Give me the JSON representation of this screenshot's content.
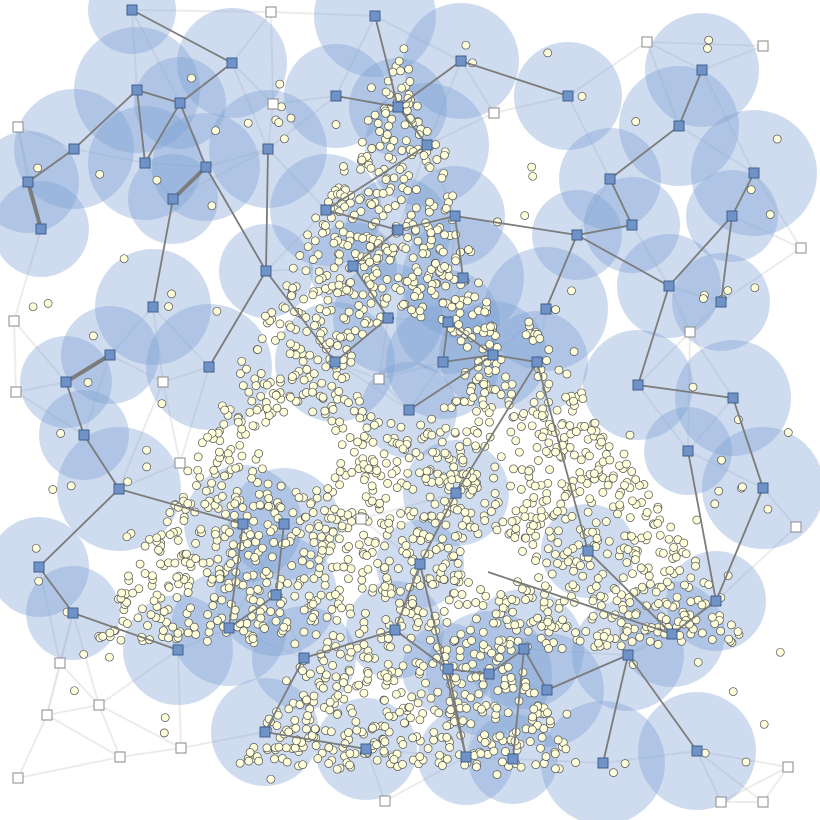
{
  "diagram": {
    "type": "sensor-network-coverage",
    "colors": {
      "background": "#ffffff",
      "coverage_fill": "#7b9fd2",
      "coverage_opacity": 0.36,
      "active_node_fill": "#7093c7",
      "active_node_stroke": "#3f5f8c",
      "inactive_node_fill": "#ffffff",
      "inactive_node_stroke": "#8a8a8a",
      "point_fill": "#ffffdc",
      "point_stroke": "#555555",
      "edge_color": "#7c7c7c",
      "faint_edge_color": "#dddddd"
    },
    "legend": "none",
    "grid": false
  },
  "network": {
    "active_nodes": [
      [
        132,
        10
      ],
      [
        375,
        16
      ],
      [
        461,
        61
      ],
      [
        232,
        63
      ],
      [
        336,
        96
      ],
      [
        398,
        107
      ],
      [
        180,
        103
      ],
      [
        137,
        90
      ],
      [
        74,
        149
      ],
      [
        145,
        163
      ],
      [
        206,
        167
      ],
      [
        28,
        182
      ],
      [
        41,
        229
      ],
      [
        173,
        199
      ],
      [
        427,
        145
      ],
      [
        268,
        149
      ],
      [
        326,
        210
      ],
      [
        398,
        230
      ],
      [
        455,
        216
      ],
      [
        266,
        271
      ],
      [
        353,
        266
      ],
      [
        463,
        278
      ],
      [
        153,
        307
      ],
      [
        388,
        318
      ],
      [
        448,
        322
      ],
      [
        110,
        355
      ],
      [
        66,
        382
      ],
      [
        209,
        367
      ],
      [
        335,
        362
      ],
      [
        443,
        362
      ],
      [
        493,
        355
      ],
      [
        537,
        362
      ],
      [
        409,
        410
      ],
      [
        84,
        435
      ],
      [
        119,
        489
      ],
      [
        243,
        524
      ],
      [
        284,
        524
      ],
      [
        456,
        493
      ],
      [
        39,
        567
      ],
      [
        73,
        613
      ],
      [
        420,
        564
      ],
      [
        276,
        595
      ],
      [
        229,
        628
      ],
      [
        178,
        650
      ],
      [
        304,
        658
      ],
      [
        395,
        630
      ],
      [
        448,
        669
      ],
      [
        489,
        674
      ],
      [
        524,
        649
      ],
      [
        547,
        690
      ],
      [
        265,
        732
      ],
      [
        366,
        749
      ],
      [
        466,
        757
      ],
      [
        513,
        759
      ],
      [
        603,
        763
      ],
      [
        697,
        751
      ],
      [
        628,
        655
      ],
      [
        672,
        634
      ],
      [
        716,
        601
      ],
      [
        588,
        551
      ],
      [
        688,
        451
      ],
      [
        763,
        488
      ],
      [
        733,
        398
      ],
      [
        638,
        385
      ],
      [
        669,
        286
      ],
      [
        721,
        302
      ],
      [
        732,
        216
      ],
      [
        754,
        173
      ],
      [
        679,
        126
      ],
      [
        702,
        70
      ],
      [
        568,
        96
      ],
      [
        610,
        179
      ],
      [
        632,
        225
      ],
      [
        577,
        235
      ],
      [
        546,
        309
      ]
    ],
    "inactive_nodes": [
      [
        271,
        12
      ],
      [
        647,
        42
      ],
      [
        763,
        46
      ],
      [
        18,
        127
      ],
      [
        273,
        104
      ],
      [
        494,
        113
      ],
      [
        801,
        248
      ],
      [
        14,
        321
      ],
      [
        690,
        332
      ],
      [
        163,
        382
      ],
      [
        16,
        392
      ],
      [
        379,
        379
      ],
      [
        180,
        463
      ],
      [
        361,
        519
      ],
      [
        796,
        527
      ],
      [
        60,
        663
      ],
      [
        47,
        715
      ],
      [
        99,
        705
      ],
      [
        181,
        748
      ],
      [
        120,
        757
      ],
      [
        18,
        778
      ],
      [
        385,
        801
      ],
      [
        721,
        802
      ],
      [
        763,
        802
      ],
      [
        788,
        767
      ]
    ],
    "edges": [
      [
        132,
        10,
        232,
        63
      ],
      [
        232,
        63,
        180,
        103
      ],
      [
        180,
        103,
        137,
        90
      ],
      [
        137,
        90,
        74,
        149
      ],
      [
        74,
        149,
        28,
        182
      ],
      [
        28,
        182,
        41,
        229
      ],
      [
        180,
        103,
        145,
        163
      ],
      [
        137,
        90,
        145,
        163
      ],
      [
        180,
        103,
        206,
        167
      ],
      [
        206,
        167,
        173,
        199
      ],
      [
        173,
        199,
        153,
        307
      ],
      [
        206,
        167,
        266,
        271
      ],
      [
        268,
        149,
        266,
        271
      ],
      [
        266,
        271,
        209,
        367
      ],
      [
        266,
        271,
        335,
        362
      ],
      [
        335,
        362,
        388,
        318
      ],
      [
        388,
        318,
        353,
        266
      ],
      [
        353,
        266,
        398,
        230
      ],
      [
        398,
        230,
        455,
        216
      ],
      [
        455,
        216,
        463,
        278
      ],
      [
        455,
        216,
        577,
        235
      ],
      [
        398,
        230,
        326,
        210
      ],
      [
        326,
        210,
        427,
        145
      ],
      [
        427,
        145,
        398,
        107
      ],
      [
        398,
        107,
        375,
        16
      ],
      [
        398,
        107,
        336,
        96
      ],
      [
        398,
        107,
        461,
        61
      ],
      [
        461,
        61,
        568,
        96
      ],
      [
        398,
        107,
        427,
        145
      ],
      [
        110,
        355,
        66,
        382
      ],
      [
        66,
        382,
        84,
        435
      ],
      [
        84,
        435,
        119,
        489
      ],
      [
        119,
        489,
        243,
        524
      ],
      [
        119,
        489,
        39,
        567
      ],
      [
        39,
        567,
        73,
        613
      ],
      [
        73,
        613,
        178,
        650
      ],
      [
        243,
        524,
        229,
        628
      ],
      [
        284,
        524,
        276,
        595
      ],
      [
        276,
        595,
        229,
        628
      ],
      [
        448,
        322,
        443,
        362
      ],
      [
        443,
        362,
        493,
        355
      ],
      [
        493,
        355,
        537,
        362
      ],
      [
        448,
        322,
        493,
        355
      ],
      [
        493,
        355,
        409,
        410
      ],
      [
        537,
        362,
        456,
        493
      ],
      [
        456,
        493,
        420,
        564
      ],
      [
        420,
        564,
        395,
        630
      ],
      [
        395,
        630,
        304,
        658
      ],
      [
        304,
        658,
        265,
        732
      ],
      [
        265,
        732,
        366,
        749
      ],
      [
        395,
        630,
        448,
        669
      ],
      [
        420,
        564,
        466,
        757
      ],
      [
        448,
        669,
        489,
        674
      ],
      [
        489,
        674,
        524,
        649
      ],
      [
        524,
        649,
        547,
        690
      ],
      [
        547,
        690,
        628,
        655
      ],
      [
        628,
        655,
        603,
        763
      ],
      [
        628,
        655,
        697,
        751
      ],
      [
        448,
        669,
        466,
        757
      ],
      [
        524,
        649,
        513,
        759
      ],
      [
        588,
        551,
        672,
        634
      ],
      [
        672,
        634,
        716,
        601
      ],
      [
        716,
        601,
        763,
        488
      ],
      [
        716,
        601,
        688,
        451
      ],
      [
        763,
        488,
        733,
        398
      ],
      [
        733,
        398,
        638,
        385
      ],
      [
        638,
        385,
        669,
        286
      ],
      [
        669,
        286,
        732,
        216
      ],
      [
        732,
        216,
        754,
        173
      ],
      [
        732,
        216,
        721,
        302
      ],
      [
        669,
        286,
        577,
        235
      ],
      [
        577,
        235,
        546,
        309
      ],
      [
        577,
        235,
        632,
        225
      ],
      [
        632,
        225,
        610,
        179
      ],
      [
        610,
        179,
        679,
        126
      ],
      [
        679,
        126,
        702,
        70
      ],
      [
        488,
        572,
        672,
        634
      ],
      [
        537,
        362,
        588,
        551
      ]
    ],
    "thick_edges": [
      [
        28,
        182,
        41,
        229
      ],
      [
        173,
        199,
        206,
        167
      ],
      [
        110,
        355,
        66,
        382
      ]
    ]
  }
}
